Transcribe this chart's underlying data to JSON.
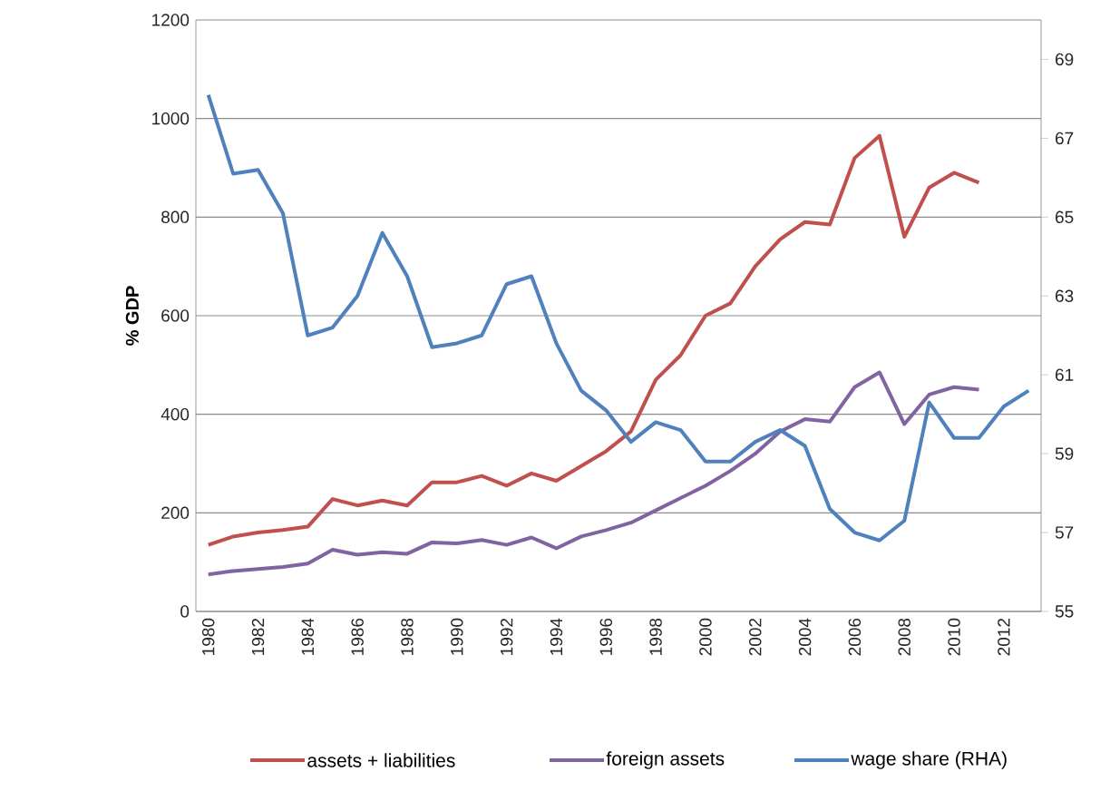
{
  "chart_data": {
    "type": "line",
    "ylabel": "% GDP",
    "categories": [
      "1980",
      null,
      "1982",
      null,
      "1984",
      null,
      "1986",
      null,
      "1988",
      null,
      "1990",
      null,
      "1992",
      null,
      "1994",
      null,
      "1996",
      null,
      "1998",
      null,
      "2000",
      null,
      "2002",
      null,
      "2004",
      null,
      "2006",
      null,
      "2008",
      null,
      "2010",
      null,
      "2012",
      null
    ],
    "series": [
      {
        "name": "assets + liabilities",
        "color": "#c0504d",
        "values": [
          135,
          152,
          160,
          165,
          172,
          228,
          215,
          225,
          215,
          262,
          262,
          275,
          255,
          280,
          265,
          295,
          325,
          365,
          470,
          520,
          600,
          625,
          700,
          755,
          790,
          785,
          920,
          965,
          760,
          860,
          890,
          870,
          null,
          null
        ]
      },
      {
        "name": "foreign assets",
        "color": "#8064a2",
        "values": [
          75,
          82,
          86,
          90,
          97,
          125,
          115,
          120,
          117,
          140,
          138,
          145,
          135,
          150,
          128,
          152,
          165,
          180,
          205,
          230,
          255,
          285,
          320,
          365,
          390,
          385,
          455,
          485,
          380,
          440,
          455,
          450,
          null,
          null
        ]
      },
      {
        "name": "wage share (RHA)",
        "color": "#4f81bd",
        "axis": "y2",
        "values": [
          68.1,
          66.1,
          66.2,
          65.1,
          62.0,
          62.2,
          63.0,
          64.6,
          63.5,
          61.7,
          61.8,
          62.0,
          63.3,
          63.5,
          61.8,
          60.6,
          60.1,
          59.3,
          59.8,
          59.6,
          58.8,
          58.8,
          59.3,
          59.6,
          59.2,
          57.6,
          57.0,
          56.8,
          57.3,
          60.3,
          59.4,
          59.4,
          60.2,
          60.6
        ]
      }
    ],
    "ylim": [
      0,
      1200
    ],
    "yticks": [
      0,
      200,
      400,
      600,
      800,
      1000,
      1200
    ],
    "y2lim": [
      55,
      70
    ],
    "y2ticks": [
      55,
      57,
      59,
      61,
      63,
      65,
      67,
      69
    ],
    "grid": "y",
    "legend": "bottom",
    "marker": "none",
    "line_style": "solid"
  }
}
